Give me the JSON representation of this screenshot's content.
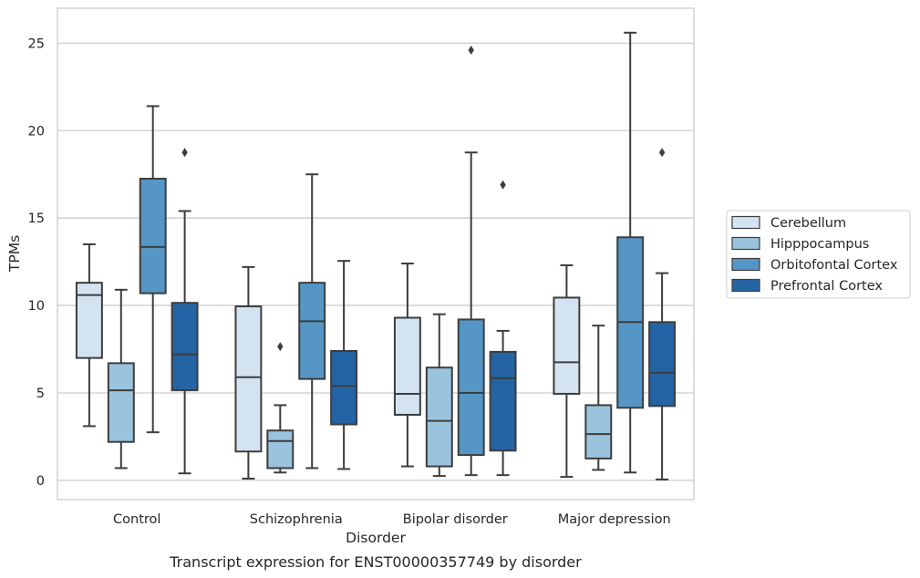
{
  "chart_data": {
    "type": "boxplot",
    "xlabel": "Disorder",
    "ylabel": "TPMs",
    "caption": "Transcript expression for ENST00000357749 by disorder",
    "ylim": [
      -1.1,
      27
    ],
    "yticks": [
      0,
      5,
      10,
      15,
      20,
      25
    ],
    "grid": true,
    "legend_position": "right",
    "categories": [
      "Control",
      "Schizophrenia",
      "Bipolar disorder",
      "Major depression"
    ],
    "series": [
      {
        "name": "Cerebellum",
        "color": "#d4e3f2",
        "boxes": [
          {
            "whislo": 3.1,
            "q1": 7.0,
            "med": 10.6,
            "q3": 11.3,
            "whishi": 13.5,
            "fliers": []
          },
          {
            "whislo": 0.1,
            "q1": 1.65,
            "med": 5.9,
            "q3": 9.95,
            "whishi": 12.2,
            "fliers": []
          },
          {
            "whislo": 0.8,
            "q1": 3.75,
            "med": 4.95,
            "q3": 9.3,
            "whishi": 12.4,
            "fliers": []
          },
          {
            "whislo": 0.2,
            "q1": 4.95,
            "med": 6.75,
            "q3": 10.45,
            "whishi": 12.3,
            "fliers": []
          }
        ]
      },
      {
        "name": "Hipppocampus",
        "color": "#9ac3de",
        "boxes": [
          {
            "whislo": 0.7,
            "q1": 2.2,
            "med": 5.15,
            "q3": 6.7,
            "whishi": 10.9,
            "fliers": []
          },
          {
            "whislo": 0.45,
            "q1": 0.7,
            "med": 2.25,
            "q3": 2.85,
            "whishi": 4.3,
            "fliers": [
              7.65
            ]
          },
          {
            "whislo": 0.25,
            "q1": 0.8,
            "med": 3.4,
            "q3": 6.45,
            "whishi": 9.5,
            "fliers": []
          },
          {
            "whislo": 0.6,
            "q1": 1.25,
            "med": 2.65,
            "q3": 4.3,
            "whishi": 8.85,
            "fliers": []
          }
        ]
      },
      {
        "name": "Orbitofontal Cortex",
        "color": "#5596c6",
        "boxes": [
          {
            "whislo": 2.75,
            "q1": 10.7,
            "med": 13.35,
            "q3": 17.25,
            "whishi": 21.4,
            "fliers": []
          },
          {
            "whislo": 0.7,
            "q1": 5.8,
            "med": 9.1,
            "q3": 11.3,
            "whishi": 17.5,
            "fliers": []
          },
          {
            "whislo": 0.3,
            "q1": 1.45,
            "med": 5.0,
            "q3": 9.2,
            "whishi": 18.75,
            "fliers": [
              24.6
            ]
          },
          {
            "whislo": 0.45,
            "q1": 4.15,
            "med": 9.05,
            "q3": 13.9,
            "whishi": 25.6,
            "fliers": []
          }
        ]
      },
      {
        "name": "Prefrontal Cortex",
        "color": "#2464a4",
        "boxes": [
          {
            "whislo": 0.4,
            "q1": 5.15,
            "med": 7.2,
            "q3": 10.15,
            "whishi": 15.4,
            "fliers": [
              18.75
            ]
          },
          {
            "whislo": 0.65,
            "q1": 3.2,
            "med": 5.4,
            "q3": 7.4,
            "whishi": 12.55,
            "fliers": []
          },
          {
            "whislo": 0.3,
            "q1": 1.7,
            "med": 5.85,
            "q3": 7.35,
            "whishi": 8.55,
            "fliers": [
              16.9
            ]
          },
          {
            "whislo": 0.05,
            "q1": 4.25,
            "med": 6.15,
            "q3": 9.05,
            "whishi": 11.85,
            "fliers": [
              18.75
            ]
          }
        ]
      }
    ]
  }
}
